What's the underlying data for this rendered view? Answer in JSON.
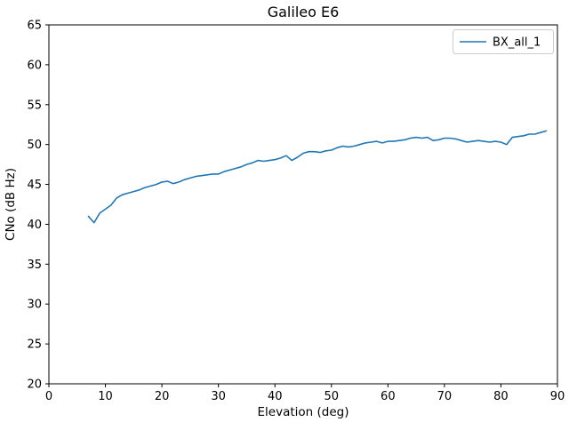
{
  "chart_data": {
    "type": "line",
    "title": "Galileo E6",
    "xlabel": "Elevation (deg)",
    "ylabel": "CNo (dB Hz)",
    "xlim": [
      0,
      90
    ],
    "ylim": [
      20,
      65
    ],
    "xticks": [
      0,
      10,
      20,
      30,
      40,
      50,
      60,
      70,
      80,
      90
    ],
    "yticks": [
      20,
      25,
      30,
      35,
      40,
      45,
      50,
      55,
      60,
      65
    ],
    "grid": false,
    "legend_position": "upper right",
    "x": [
      7,
      8,
      9,
      10,
      11,
      12,
      13,
      14,
      15,
      16,
      17,
      18,
      19,
      20,
      21,
      22,
      23,
      24,
      25,
      26,
      27,
      28,
      29,
      30,
      31,
      32,
      33,
      34,
      35,
      36,
      37,
      38,
      39,
      40,
      41,
      42,
      43,
      44,
      45,
      46,
      47,
      48,
      49,
      50,
      51,
      52,
      53,
      54,
      55,
      56,
      57,
      58,
      59,
      60,
      61,
      62,
      63,
      64,
      65,
      66,
      67,
      68,
      69,
      70,
      71,
      72,
      73,
      74,
      75,
      76,
      77,
      78,
      79,
      80,
      81,
      82,
      83,
      84,
      85,
      86,
      87,
      88
    ],
    "series": [
      {
        "name": "BX_all_1",
        "color": "#1f77b4",
        "values": [
          41.0,
          40.2,
          41.4,
          41.9,
          42.4,
          43.3,
          43.7,
          43.9,
          44.1,
          44.3,
          44.6,
          44.8,
          45.0,
          45.3,
          45.4,
          45.1,
          45.3,
          45.6,
          45.8,
          46.0,
          46.1,
          46.2,
          46.3,
          46.3,
          46.6,
          46.8,
          47.0,
          47.2,
          47.5,
          47.7,
          48.0,
          47.9,
          48.0,
          48.1,
          48.3,
          48.6,
          48.0,
          48.4,
          48.9,
          49.1,
          49.1,
          49.0,
          49.2,
          49.3,
          49.6,
          49.8,
          49.7,
          49.8,
          50.0,
          50.2,
          50.3,
          50.4,
          50.2,
          50.4,
          50.4,
          50.5,
          50.6,
          50.8,
          50.9,
          50.8,
          50.9,
          50.5,
          50.6,
          50.8,
          50.8,
          50.7,
          50.5,
          50.3,
          50.4,
          50.5,
          50.4,
          50.3,
          50.4,
          50.3,
          50.0,
          50.9,
          51.0,
          51.1,
          51.3,
          51.3,
          51.5,
          51.7
        ]
      }
    ]
  }
}
